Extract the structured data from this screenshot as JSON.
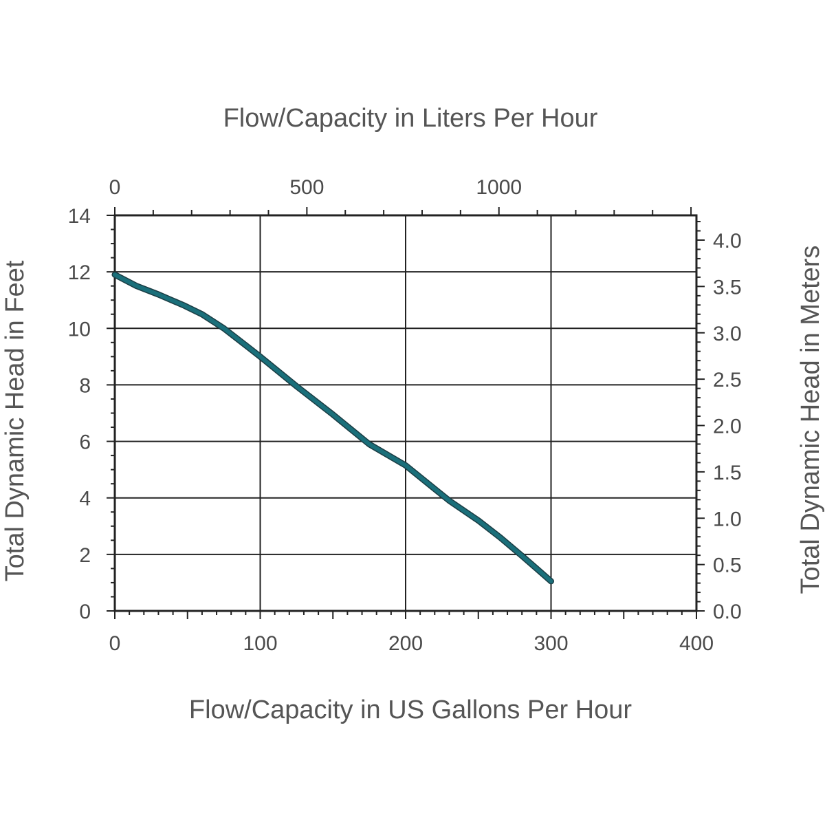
{
  "chart_data": {
    "type": "line",
    "x_axis_bottom": {
      "label": "Flow/Capacity in US Gallons Per Hour",
      "range": [
        0,
        400
      ],
      "ticks": [
        0,
        100,
        200,
        300,
        400
      ],
      "tick_labels": [
        "0",
        "100",
        "200",
        "300",
        "400"
      ]
    },
    "x_axis_top": {
      "label": "Flow/Capacity in Liters Per Hour",
      "ticks": [
        0,
        500,
        1000
      ],
      "tick_labels": [
        "0",
        "500",
        "1000"
      ]
    },
    "y_axis_left": {
      "label": "Total Dynamic Head in Feet",
      "range": [
        0,
        14
      ],
      "ticks": [
        0,
        2,
        4,
        6,
        8,
        10,
        12,
        14
      ],
      "tick_labels": [
        "0",
        "2",
        "4",
        "6",
        "8",
        "10",
        "12",
        "14"
      ]
    },
    "y_axis_right": {
      "label": "Total Dynamic Head in Meters",
      "ticks": [
        0.0,
        0.5,
        1.0,
        1.5,
        2.0,
        2.5,
        3.0,
        3.5,
        4.0
      ],
      "tick_labels": [
        "0.0",
        "0.5",
        "1.0",
        "1.5",
        "2.0",
        "2.5",
        "3.0",
        "3.5",
        "4.0"
      ]
    },
    "grid": true,
    "series": [
      {
        "color": "#1a6f7a",
        "x": [
          0,
          15,
          30,
          48,
          60,
          75,
          90,
          100,
          125,
          150,
          175,
          200,
          230,
          250,
          265,
          280,
          290,
          300
        ],
        "y": [
          11.9,
          11.5,
          11.2,
          10.8,
          10.5,
          10.0,
          9.4,
          9.0,
          7.95,
          6.95,
          5.9,
          5.15,
          3.9,
          3.2,
          2.6,
          1.95,
          1.5,
          1.05
        ]
      }
    ]
  }
}
